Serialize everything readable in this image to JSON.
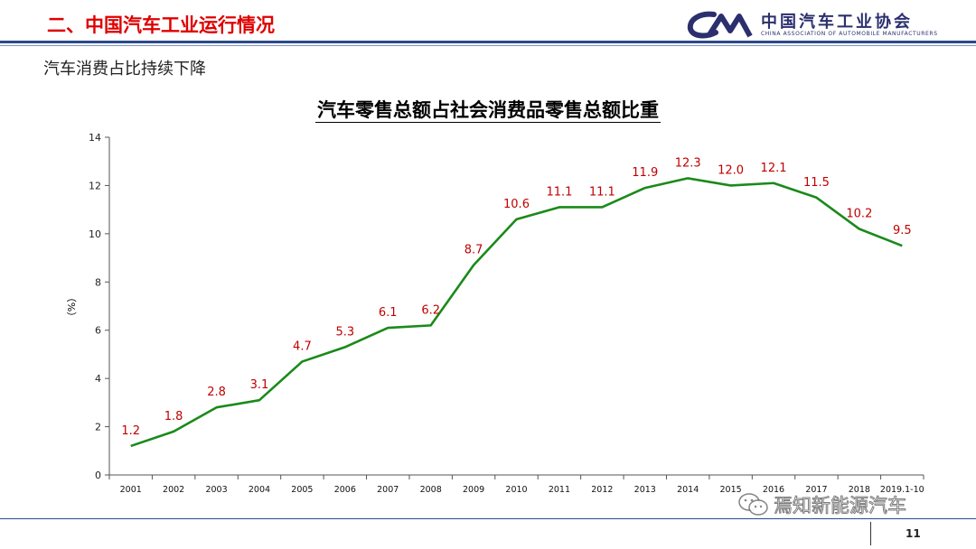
{
  "header": {
    "section_title": "二、中国汽车工业运行情况",
    "logo_cn": "中国汽车工业协会",
    "logo_en": "CHINA ASSOCIATION OF AUTOMOBILE MANUFACTURERS"
  },
  "subtitle": "汽车消费占比持续下降",
  "footer": {
    "page_number": "11",
    "watermark": "焉知新能源汽车"
  },
  "colors": {
    "line": "#1a8a1a",
    "data_label": "#c00000",
    "section_title": "#e00000",
    "rule": "#2b4a8b"
  },
  "chart_data": {
    "type": "line",
    "title": "汽车零售总额占社会消费品零售总额比重",
    "ylabel": "（%）",
    "xlabel": "",
    "ylim": [
      0,
      14
    ],
    "yticks": [
      0,
      2,
      4,
      6,
      8,
      10,
      12,
      14
    ],
    "grid": false,
    "categories": [
      "2001",
      "2002",
      "2003",
      "2004",
      "2005",
      "2006",
      "2007",
      "2008",
      "2009",
      "2010",
      "2011",
      "2012",
      "2013",
      "2014",
      "2015",
      "2016",
      "2017",
      "2018",
      "2019.1-10"
    ],
    "values": [
      1.2,
      1.8,
      2.8,
      3.1,
      4.7,
      5.3,
      6.1,
      6.2,
      8.7,
      10.6,
      11.1,
      11.1,
      11.9,
      12.3,
      12.0,
      12.1,
      11.5,
      10.2,
      9.5
    ],
    "data_labels": [
      "1.2",
      "1.8",
      "2.8",
      "3.1",
      "4.7",
      "5.3",
      "6.1",
      "6.2",
      "8.7",
      "10.6",
      "11.1",
      "11.1",
      "11.9",
      "12.3",
      "12.0",
      "12.1",
      "11.5",
      "10.2",
      "9.5"
    ]
  }
}
